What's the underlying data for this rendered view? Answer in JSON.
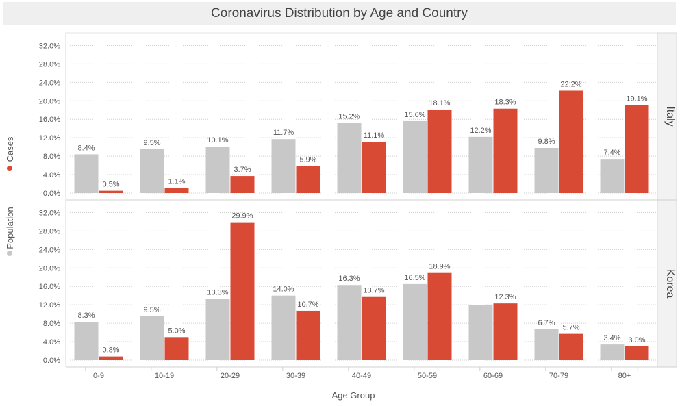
{
  "title": "Coronavirus Distribution by Age and Country",
  "chart_data": {
    "type": "bar",
    "title": "Coronavirus Distribution by Age and Country",
    "xlabel": "Age Group",
    "categories": [
      "0-9",
      "10-19",
      "20-29",
      "30-39",
      "40-49",
      "50-59",
      "60-69",
      "70-79",
      "80+"
    ],
    "y_ticks": [
      "0.0%",
      "4.0%",
      "8.0%",
      "12.0%",
      "16.0%",
      "20.0%",
      "24.0%",
      "28.0%",
      "32.0%"
    ],
    "ylim": [
      0,
      34
    ],
    "legend": [
      "Population",
      "Cases"
    ],
    "colors": {
      "population": "#c8c8c8",
      "cases": "#d94a35"
    },
    "facets": [
      {
        "name": "Italy",
        "series": [
          {
            "name": "Population",
            "values": [
              8.4,
              9.5,
              10.1,
              11.7,
              15.2,
              15.6,
              12.2,
              9.8,
              7.4
            ],
            "labels": [
              "8.4%",
              "9.5%",
              "10.1%",
              "11.7%",
              "15.2%",
              "15.6%",
              "12.2%",
              "9.8%",
              "7.4%"
            ]
          },
          {
            "name": "Cases",
            "values": [
              0.5,
              1.1,
              3.7,
              5.9,
              11.1,
              18.1,
              18.3,
              22.2,
              19.1
            ],
            "labels": [
              "0.5%",
              "1.1%",
              "3.7%",
              "5.9%",
              "11.1%",
              "18.1%",
              "18.3%",
              "22.2%",
              "19.1%"
            ]
          }
        ]
      },
      {
        "name": "Korea",
        "series": [
          {
            "name": "Population",
            "values": [
              8.3,
              9.5,
              13.3,
              14.0,
              16.3,
              16.5,
              12.0,
              6.7,
              3.4
            ],
            "labels": [
              "8.3%",
              "9.5%",
              "13.3%",
              "14.0%",
              "16.3%",
              "16.5%",
              "",
              "6.7%",
              "3.4%"
            ]
          },
          {
            "name": "Cases",
            "values": [
              0.8,
              5.0,
              29.9,
              10.7,
              13.7,
              18.9,
              12.3,
              5.7,
              3.0
            ],
            "labels": [
              "0.8%",
              "5.0%",
              "29.9%",
              "10.7%",
              "13.7%",
              "18.9%",
              "12.3%",
              "5.7%",
              "3.0%"
            ]
          }
        ]
      }
    ],
    "grid": true
  }
}
